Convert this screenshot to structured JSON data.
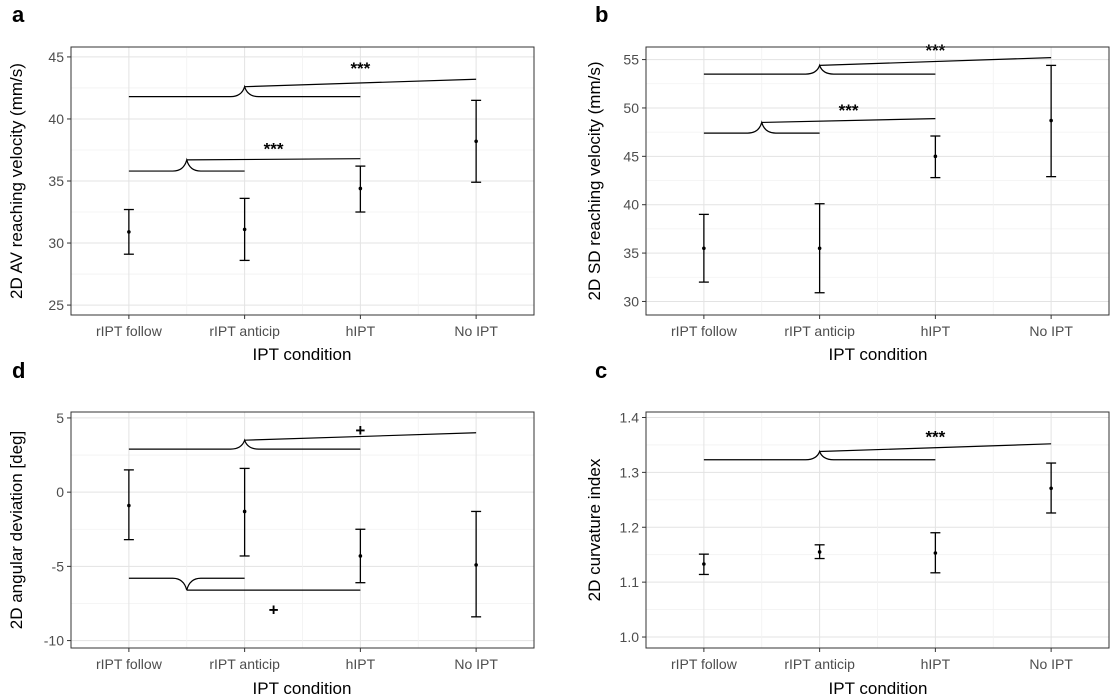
{
  "chart_data": [
    {
      "panel": "a",
      "type": "scatter",
      "subtype": "point-errorbar",
      "categories": [
        "rIPT follow",
        "rIPT anticip",
        "hIPT",
        "No IPT"
      ],
      "xlabel": "IPT condition",
      "ylabel": "2D AV reaching velocity (mm/s)",
      "ylim": [
        24.2,
        45.8
      ],
      "yticks": [
        25,
        30,
        35,
        40,
        45
      ],
      "grid": true,
      "series": [
        {
          "mean": [
            30.9,
            31.1,
            34.4,
            38.2
          ],
          "lower": [
            29.1,
            28.6,
            32.5,
            34.9
          ],
          "upper": [
            32.7,
            33.6,
            36.2,
            41.5
          ]
        }
      ],
      "annotations": [
        {
          "label": "***",
          "group_from": 0,
          "group_to": 1,
          "group_y": 35.8,
          "apex_y": 36.7,
          "target": 2,
          "target_y": 36.8,
          "label_y": 37.6
        },
        {
          "label": "***",
          "group_from": 0,
          "group_to": 2,
          "group_y": 41.8,
          "apex_y": 42.6,
          "target": 3,
          "target_y": 43.2,
          "label_y": 44.1
        }
      ]
    },
    {
      "panel": "b",
      "type": "scatter",
      "subtype": "point-errorbar",
      "categories": [
        "rIPT follow",
        "rIPT anticip",
        "hIPT",
        "No IPT"
      ],
      "xlabel": "IPT condition",
      "ylabel": "2D SD reaching velocity (mm/s)",
      "ylim": [
        28.6,
        56.3
      ],
      "yticks": [
        30,
        35,
        40,
        45,
        50,
        55
      ],
      "grid": true,
      "series": [
        {
          "mean": [
            35.5,
            35.5,
            45.0,
            48.7
          ],
          "lower": [
            32.0,
            30.9,
            42.8,
            42.9
          ],
          "upper": [
            39.0,
            40.1,
            47.1,
            54.4
          ]
        }
      ],
      "annotations": [
        {
          "label": "***",
          "group_from": 0,
          "group_to": 1,
          "group_y": 47.4,
          "apex_y": 48.5,
          "target": 2,
          "target_y": 48.9,
          "label_y": 49.8
        },
        {
          "label": "***",
          "group_from": 0,
          "group_to": 2,
          "group_y": 53.5,
          "apex_y": 54.4,
          "target": 3,
          "target_y": 55.2,
          "label_y": 56.0
        }
      ]
    },
    {
      "panel": "d",
      "type": "scatter",
      "subtype": "point-errorbar",
      "categories": [
        "rIPT follow",
        "rIPT anticip",
        "hIPT",
        "No IPT"
      ],
      "xlabel": "IPT condition",
      "ylabel": "2D angular deviation [deg]",
      "ylim": [
        -10.5,
        5.4
      ],
      "yticks": [
        -10,
        -5,
        0,
        5
      ],
      "grid": true,
      "series": [
        {
          "mean": [
            -0.9,
            -1.3,
            -4.3,
            -4.9
          ],
          "lower": [
            -3.2,
            -4.3,
            -6.1,
            -8.4
          ],
          "upper": [
            1.5,
            1.6,
            -2.5,
            -1.3
          ]
        }
      ],
      "annotations": [
        {
          "label": "+",
          "group_from": 0,
          "group_to": 2,
          "group_y": 2.9,
          "apex_y": 3.5,
          "target": 3,
          "target_y": 4.0,
          "label_y": 4.2
        },
        {
          "label": "+",
          "group_from": 0,
          "group_to": 1,
          "group_y": -5.8,
          "apex_y": -6.6,
          "target": 2,
          "target_y": -6.6,
          "label_y": -7.9
        }
      ]
    },
    {
      "panel": "c",
      "type": "scatter",
      "subtype": "point-errorbar",
      "categories": [
        "rIPT follow",
        "rIPT anticip",
        "hIPT",
        "No IPT"
      ],
      "xlabel": "IPT condition",
      "ylabel": "2D curvature index",
      "ylim": [
        0.98,
        1.41
      ],
      "yticks": [
        1.0,
        1.1,
        1.2,
        1.3,
        1.4
      ],
      "grid": true,
      "series": [
        {
          "mean": [
            1.133,
            1.155,
            1.153,
            1.271
          ],
          "lower": [
            1.114,
            1.143,
            1.117,
            1.226
          ],
          "upper": [
            1.151,
            1.168,
            1.19,
            1.317
          ]
        }
      ],
      "annotations": [
        {
          "label": "***",
          "group_from": 0,
          "group_to": 2,
          "group_y": 1.323,
          "apex_y": 1.338,
          "target": 3,
          "target_y": 1.352,
          "label_y": 1.365
        }
      ]
    }
  ]
}
